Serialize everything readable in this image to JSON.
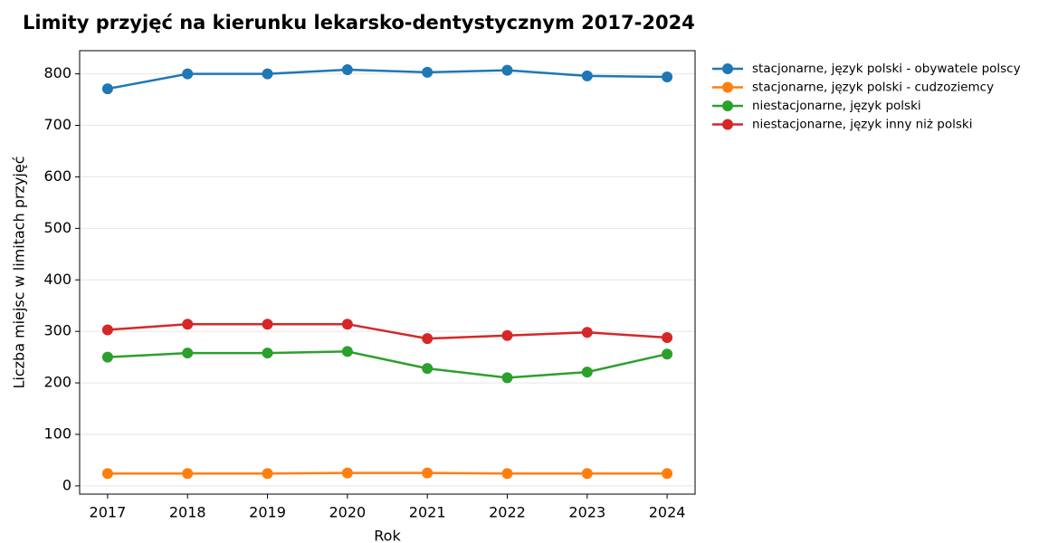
{
  "chart_data": {
    "type": "line",
    "title": "Limity przyjęć na kierunku lekarsko-dentystycznym 2017-2024",
    "x_label": "Rok",
    "y_label": "Liczba miejsc w limitach przyjęć",
    "x": [
      2017,
      2018,
      2019,
      2020,
      2021,
      2022,
      2023,
      2024
    ],
    "series": [
      {
        "name": "stacjonarne, język polski - obywatele polscy",
        "color": "#1f77b4",
        "values": [
          771,
          800,
          800,
          808,
          803,
          807,
          796,
          794
        ]
      },
      {
        "name": "stacjonarne, język polski - cudzoziemcy",
        "color": "#ff7f0e",
        "values": [
          24,
          24,
          24,
          25,
          25,
          24,
          24,
          24
        ]
      },
      {
        "name": "niestacjonarne, język polski",
        "color": "#2ca02c",
        "values": [
          250,
          258,
          258,
          261,
          228,
          210,
          221,
          256
        ]
      },
      {
        "name": "niestacjonarne, język inny niż polski",
        "color": "#d62728",
        "values": [
          303,
          314,
          314,
          314,
          286,
          292,
          298,
          288
        ]
      }
    ],
    "xlim": [
      2016.65,
      2024.35
    ],
    "xticks": [
      2017,
      2018,
      2019,
      2020,
      2021,
      2022,
      2023,
      2024
    ],
    "ylim": [
      -16,
      845
    ],
    "yticks": [
      0,
      100,
      200,
      300,
      400,
      500,
      600,
      700,
      800
    ],
    "grid": true,
    "legend": "outside-right"
  }
}
